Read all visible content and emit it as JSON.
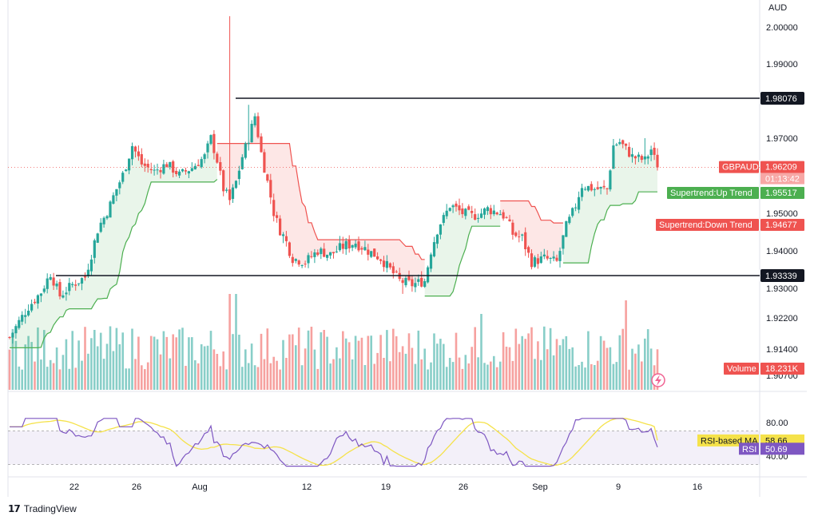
{
  "chart_data": {
    "type": "candlestick",
    "symbol": "GBPAUD",
    "currency": "AUD",
    "last_price": "1.96209",
    "countdown": "01:13:42",
    "price_axis": {
      "min": 1.9035,
      "max": 2.0045,
      "ticks": [
        "2.00000",
        "1.99000",
        "1.97000",
        "1.95000",
        "1.94000",
        "1.93000",
        "1.92200",
        "1.91400",
        "1.90700"
      ]
    },
    "x_labels": [
      "22",
      "26",
      "Aug",
      "12",
      "19",
      "26",
      "Sep",
      "9",
      "16"
    ],
    "horizontal_lines": [
      {
        "value": 1.98076,
        "label": "1.98076"
      },
      {
        "value": 1.93339,
        "label": "1.93339"
      }
    ],
    "indicators": {
      "supertrend_up": {
        "label": "Supertrend:Up Trend",
        "value": "1.95517"
      },
      "supertrend_down": {
        "label": "Supertrend:Down Trend",
        "value": "1.94677"
      },
      "volume": {
        "label": "Volume",
        "value": "18.231K"
      }
    },
    "rsi": {
      "axis_ticks": [
        "80.00",
        "40.00"
      ],
      "upper_band": 70,
      "lower_band": 30,
      "ma_label": "RSI-based MA",
      "ma_value": "58.66",
      "rsi_label": "RSI",
      "rsi_value": "50.69"
    },
    "colors": {
      "up": "#26a69a",
      "down": "#ef5350",
      "rsi_line": "#7e57c2",
      "rsi_ma": "#f5e24a",
      "supertrend_up": "#4caf50",
      "supertrend_down": "#ef5350"
    }
  },
  "brand": {
    "name": "TradingView"
  }
}
